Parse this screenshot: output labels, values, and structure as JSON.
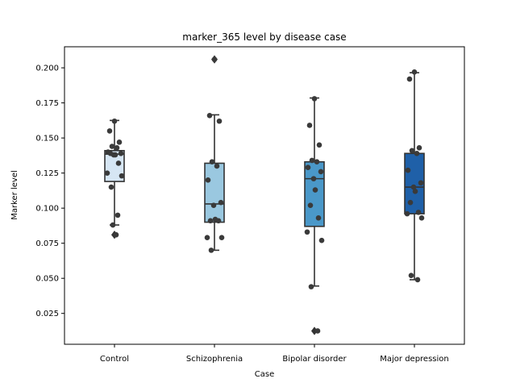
{
  "chart_data": {
    "type": "box",
    "title": "marker_365 level by disease case",
    "xlabel": "Case",
    "ylabel": "Marker level",
    "ylim": [
      0.003,
      0.215
    ],
    "yticks": [
      0.025,
      0.05,
      0.075,
      0.1,
      0.125,
      0.15,
      0.175,
      0.2
    ],
    "ytick_labels": [
      "0.025",
      "0.050",
      "0.075",
      "0.100",
      "0.125",
      "0.150",
      "0.175",
      "0.200"
    ],
    "categories": [
      "Control",
      "Schizophrenia",
      "Bipolar disorder",
      "Major depression"
    ],
    "colors": [
      "#d6e6f4",
      "#9ac8e0",
      "#4a98c9",
      "#1f60a8"
    ],
    "line_color": "#333333",
    "point_color": "#3a3a3a",
    "grid": false,
    "legend": "none",
    "boxes": [
      {
        "category": "Control",
        "whislo": 0.088,
        "q1": 0.119,
        "median": 0.1385,
        "q3": 0.141,
        "whishi": 0.1625,
        "fliers": [
          0.081
        ]
      },
      {
        "category": "Schizophrenia",
        "whislo": 0.07,
        "q1": 0.09,
        "median": 0.103,
        "q3": 0.132,
        "whishi": 0.1665,
        "fliers": [
          0.206
        ]
      },
      {
        "category": "Bipolar disorder",
        "whislo": 0.0445,
        "q1": 0.087,
        "median": 0.121,
        "q3": 0.133,
        "whishi": 0.1785,
        "fliers": [
          0.0125
        ]
      },
      {
        "category": "Major depression",
        "whislo": 0.049,
        "q1": 0.096,
        "median": 0.115,
        "q3": 0.139,
        "whishi": 0.1965,
        "fliers": []
      }
    ],
    "points": [
      {
        "category": "Control",
        "values": [
          0.162,
          0.155,
          0.147,
          0.144,
          0.143,
          0.14,
          0.139,
          0.138,
          0.138,
          0.139,
          0.132,
          0.125,
          0.123,
          0.115,
          0.095,
          0.088,
          0.081
        ]
      },
      {
        "category": "Schizophrenia",
        "values": [
          0.206,
          0.166,
          0.162,
          0.133,
          0.13,
          0.12,
          0.104,
          0.102,
          0.092,
          0.091,
          0.091,
          0.079,
          0.079,
          0.07
        ]
      },
      {
        "category": "Bipolar disorder",
        "values": [
          0.178,
          0.159,
          0.145,
          0.134,
          0.133,
          0.129,
          0.126,
          0.121,
          0.113,
          0.102,
          0.093,
          0.083,
          0.077,
          0.044,
          0.0125
        ]
      },
      {
        "category": "Major depression",
        "values": [
          0.197,
          0.192,
          0.143,
          0.141,
          0.139,
          0.127,
          0.118,
          0.115,
          0.112,
          0.104,
          0.097,
          0.096,
          0.093,
          0.052,
          0.049
        ]
      }
    ]
  }
}
